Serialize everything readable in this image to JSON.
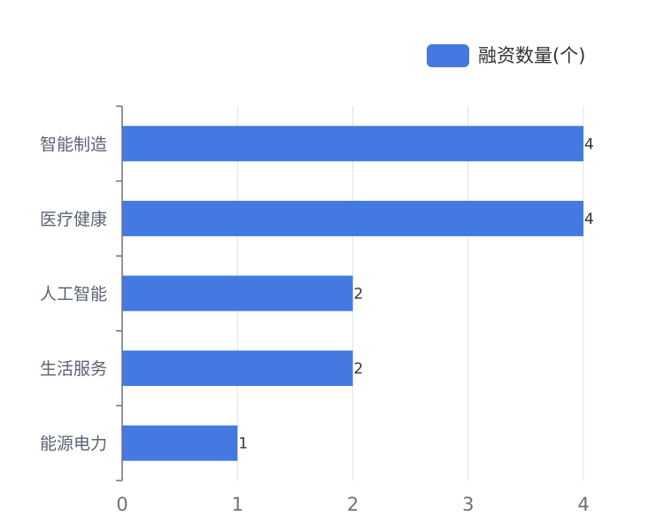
{
  "colors": {
    "bar": "#4379e0",
    "grid": "#dbe3ee",
    "axis": "#6e7079",
    "label": "#5b6272",
    "value_label": "#333333"
  },
  "chart_data": {
    "type": "bar",
    "orientation": "horizontal",
    "categories": [
      "智能制造",
      "医疗健康",
      "人工智能",
      "生活服务",
      "能源电力"
    ],
    "series": [
      {
        "name": "融资数量(个)",
        "values": [
          4,
          4,
          2,
          2,
          1
        ]
      }
    ],
    "xlim": [
      0,
      4
    ],
    "x_ticks": [
      "0",
      "1",
      "2",
      "3",
      "4"
    ],
    "grid": "vertical",
    "legend_position": "top-right",
    "show_value_labels": true
  }
}
